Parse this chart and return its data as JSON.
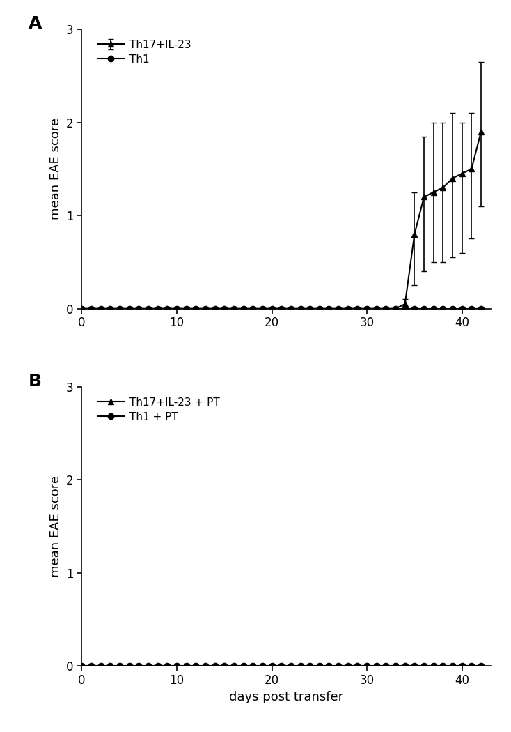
{
  "panel_A": {
    "label": "A",
    "th17_x": [
      0,
      1,
      2,
      3,
      4,
      5,
      6,
      7,
      8,
      9,
      10,
      11,
      12,
      13,
      14,
      15,
      16,
      17,
      18,
      19,
      20,
      21,
      22,
      23,
      24,
      25,
      26,
      27,
      28,
      29,
      30,
      31,
      32,
      33,
      34,
      35,
      36,
      37,
      38,
      39,
      40,
      41,
      42
    ],
    "th17_y": [
      0,
      0,
      0,
      0,
      0,
      0,
      0,
      0,
      0,
      0,
      0,
      0,
      0,
      0,
      0,
      0,
      0,
      0,
      0,
      0,
      0,
      0,
      0,
      0,
      0,
      0,
      0,
      0,
      0,
      0,
      0,
      0,
      0,
      0,
      0.05,
      0.8,
      1.2,
      1.25,
      1.3,
      1.4,
      1.45,
      1.5,
      1.9
    ],
    "th17_yerr_lo": [
      0,
      0,
      0,
      0,
      0,
      0,
      0,
      0,
      0,
      0,
      0,
      0,
      0,
      0,
      0,
      0,
      0,
      0,
      0,
      0,
      0,
      0,
      0,
      0,
      0,
      0,
      0,
      0,
      0,
      0,
      0,
      0,
      0,
      0,
      0.05,
      0.55,
      0.8,
      0.75,
      0.8,
      0.85,
      0.85,
      0.75,
      0.8
    ],
    "th17_yerr_hi": [
      0,
      0,
      0,
      0,
      0,
      0,
      0,
      0,
      0,
      0,
      0,
      0,
      0,
      0,
      0,
      0,
      0,
      0,
      0,
      0,
      0,
      0,
      0,
      0,
      0,
      0,
      0,
      0,
      0,
      0,
      0,
      0,
      0,
      0,
      0.05,
      0.45,
      0.65,
      0.75,
      0.7,
      0.7,
      0.55,
      0.6,
      0.75
    ],
    "th1_x": [
      0,
      1,
      2,
      3,
      4,
      5,
      6,
      7,
      8,
      9,
      10,
      11,
      12,
      13,
      14,
      15,
      16,
      17,
      18,
      19,
      20,
      21,
      22,
      23,
      24,
      25,
      26,
      27,
      28,
      29,
      30,
      31,
      32,
      33,
      34,
      35,
      36,
      37,
      38,
      39,
      40,
      41,
      42
    ],
    "th1_y": [
      0,
      0,
      0,
      0,
      0,
      0,
      0,
      0,
      0,
      0,
      0,
      0,
      0,
      0,
      0,
      0,
      0,
      0,
      0,
      0,
      0,
      0,
      0,
      0,
      0,
      0,
      0,
      0,
      0,
      0,
      0,
      0,
      0,
      0,
      0,
      0,
      0,
      0,
      0,
      0,
      0,
      0,
      0
    ],
    "th17_label": "Th17+IL-23",
    "th1_label": "Th1",
    "ylabel": "mean EAE score",
    "ylim": [
      0,
      3
    ],
    "yticks": [
      0,
      1,
      2,
      3
    ],
    "xlim": [
      0,
      43
    ],
    "xticks": [
      0,
      10,
      20,
      30,
      40
    ]
  },
  "panel_B": {
    "label": "B",
    "th17_x": [
      0,
      1,
      2,
      3,
      4,
      5,
      6,
      7,
      8,
      9,
      10,
      11,
      12,
      13,
      14,
      15,
      16,
      17,
      18,
      19,
      20,
      21,
      22,
      23,
      24,
      25,
      26,
      27,
      28,
      29,
      30,
      31,
      32,
      33,
      34,
      35,
      36,
      37,
      38,
      39,
      40,
      41,
      42
    ],
    "th17_y": [
      0,
      0,
      0,
      0,
      0,
      0,
      0,
      0,
      0,
      0,
      0,
      0,
      0,
      0,
      0,
      0,
      0,
      0,
      0,
      0,
      0,
      0,
      0,
      0,
      0,
      0,
      0,
      0,
      0,
      0,
      0,
      0,
      0,
      0,
      0,
      0,
      0,
      0,
      0,
      0,
      0,
      0,
      0
    ],
    "th1_x": [
      0,
      1,
      2,
      3,
      4,
      5,
      6,
      7,
      8,
      9,
      10,
      11,
      12,
      13,
      14,
      15,
      16,
      17,
      18,
      19,
      20,
      21,
      22,
      23,
      24,
      25,
      26,
      27,
      28,
      29,
      30,
      31,
      32,
      33,
      34,
      35,
      36,
      37,
      38,
      39,
      40,
      41,
      42
    ],
    "th1_y": [
      0,
      0,
      0,
      0,
      0,
      0,
      0,
      0,
      0,
      0,
      0,
      0,
      0,
      0,
      0,
      0,
      0,
      0,
      0,
      0,
      0,
      0,
      0,
      0,
      0,
      0,
      0,
      0,
      0,
      0,
      0,
      0,
      0,
      0,
      0,
      0,
      0,
      0,
      0,
      0,
      0,
      0,
      0
    ],
    "th17_label": "Th17+IL-23 + PT",
    "th1_label": "Th1 + PT",
    "ylabel": "mean EAE score",
    "xlabel": "days post transfer",
    "ylim": [
      0,
      3
    ],
    "yticks": [
      0,
      1,
      2,
      3
    ],
    "xlim": [
      0,
      43
    ],
    "xticks": [
      0,
      10,
      20,
      30,
      40
    ]
  },
  "line_color": "#000000",
  "marker_triangle": "^",
  "marker_circle": "o",
  "marker_size": 6,
  "line_width": 1.5,
  "capsize": 3,
  "elinewidth": 1.2,
  "legend_fontsize": 11,
  "axis_fontsize": 13,
  "tick_fontsize": 12,
  "label_fontsize": 18,
  "background_color": "#ffffff"
}
